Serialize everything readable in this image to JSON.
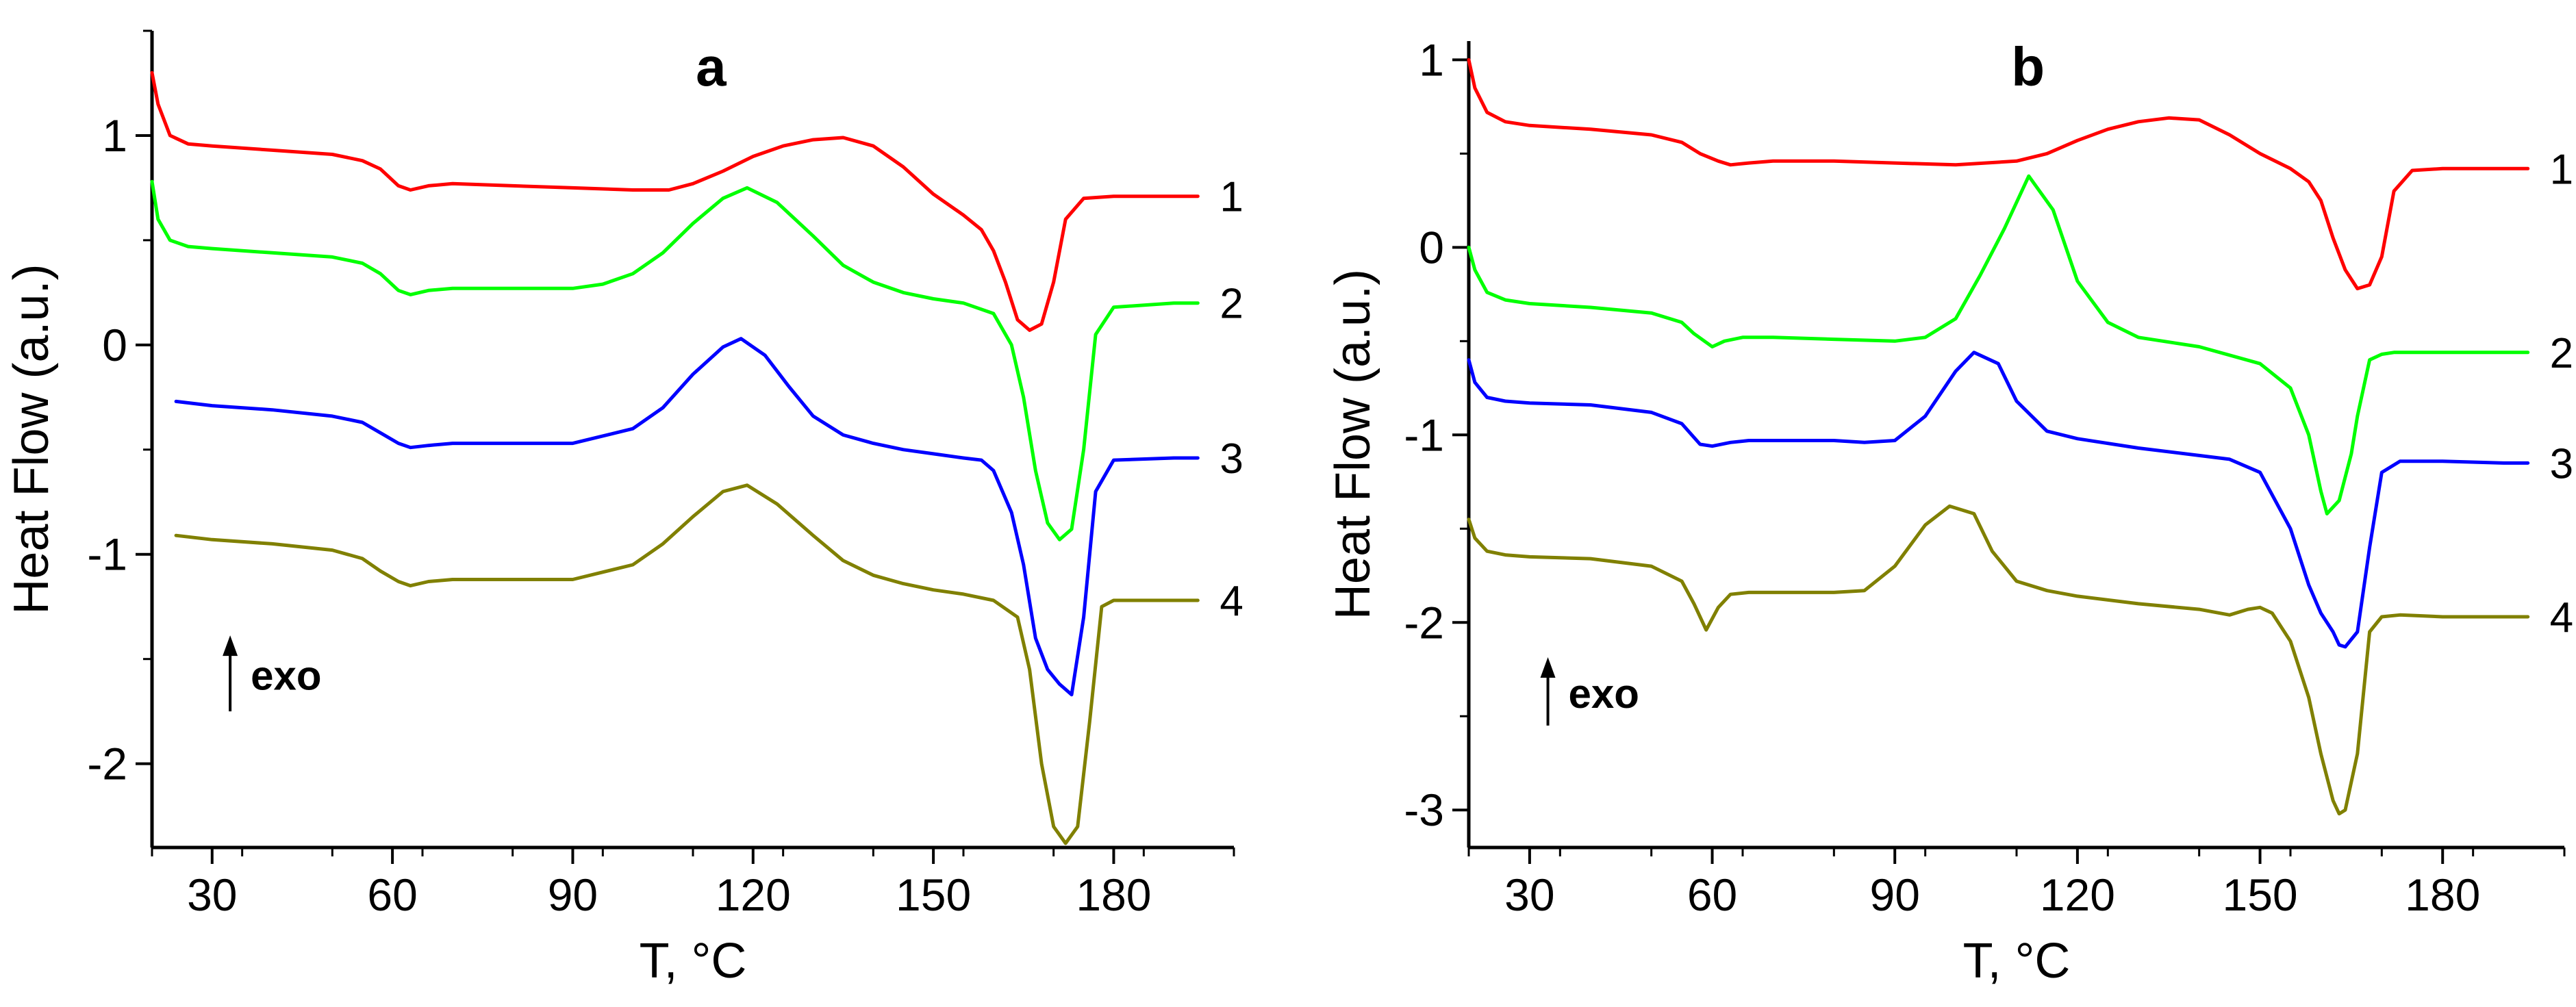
{
  "chart_data": [
    {
      "type": "line",
      "title": "a",
      "xlabel": "T, °C",
      "ylabel": "Heat Flow (a.u.)",
      "xlim": [
        20,
        200
      ],
      "ylim": [
        -2.4,
        1.5
      ],
      "xticks": [
        30,
        60,
        90,
        120,
        150,
        180
      ],
      "yticks": [
        -2,
        -1,
        0,
        1
      ],
      "grid": false,
      "annotation": "exo",
      "series": [
        {
          "name": "1",
          "color": "#ff0000",
          "x": [
            20,
            21,
            23,
            26,
            30,
            40,
            50,
            55,
            58,
            61,
            63,
            66,
            70,
            80,
            90,
            100,
            106,
            110,
            115,
            120,
            125,
            130,
            135,
            140,
            145,
            150,
            155,
            158,
            160,
            162,
            164,
            166,
            168,
            170,
            172,
            175,
            180,
            190,
            194
          ],
          "y": [
            1.3,
            1.15,
            1.0,
            0.96,
            0.95,
            0.93,
            0.91,
            0.88,
            0.84,
            0.76,
            0.74,
            0.76,
            0.77,
            0.76,
            0.75,
            0.74,
            0.74,
            0.77,
            0.83,
            0.9,
            0.95,
            0.98,
            0.99,
            0.95,
            0.85,
            0.72,
            0.62,
            0.55,
            0.45,
            0.3,
            0.12,
            0.07,
            0.1,
            0.3,
            0.6,
            0.7,
            0.71,
            0.71,
            0.71
          ]
        },
        {
          "name": "2",
          "color": "#00ff00",
          "x": [
            20,
            21,
            23,
            26,
            30,
            40,
            50,
            55,
            58,
            61,
            63,
            66,
            70,
            80,
            90,
            95,
            100,
            105,
            110,
            115,
            119,
            124,
            130,
            135,
            140,
            145,
            150,
            155,
            160,
            163,
            165,
            167,
            169,
            171,
            173,
            175,
            177,
            180,
            190,
            194
          ],
          "y": [
            0.78,
            0.6,
            0.5,
            0.47,
            0.46,
            0.44,
            0.42,
            0.39,
            0.34,
            0.26,
            0.24,
            0.26,
            0.27,
            0.27,
            0.27,
            0.29,
            0.34,
            0.44,
            0.58,
            0.7,
            0.75,
            0.68,
            0.52,
            0.38,
            0.3,
            0.25,
            0.22,
            0.2,
            0.15,
            0.0,
            -0.25,
            -0.6,
            -0.85,
            -0.93,
            -0.88,
            -0.5,
            0.05,
            0.18,
            0.2,
            0.2
          ]
        },
        {
          "name": "3",
          "color": "#0000ff",
          "x": [
            24,
            30,
            40,
            50,
            55,
            58,
            61,
            63,
            66,
            70,
            80,
            90,
            100,
            105,
            110,
            115,
            118,
            122,
            126,
            130,
            135,
            140,
            145,
            150,
            155,
            158,
            160,
            163,
            165,
            167,
            169,
            171,
            173,
            175,
            177,
            180,
            190,
            194
          ],
          "y": [
            -0.27,
            -0.29,
            -0.31,
            -0.34,
            -0.37,
            -0.42,
            -0.47,
            -0.49,
            -0.48,
            -0.47,
            -0.47,
            -0.47,
            -0.4,
            -0.3,
            -0.14,
            -0.01,
            0.03,
            -0.05,
            -0.2,
            -0.34,
            -0.43,
            -0.47,
            -0.5,
            -0.52,
            -0.54,
            -0.55,
            -0.6,
            -0.8,
            -1.05,
            -1.4,
            -1.55,
            -1.62,
            -1.67,
            -1.3,
            -0.7,
            -0.55,
            -0.54,
            -0.54
          ]
        },
        {
          "name": "4",
          "color": "#808000",
          "x": [
            24,
            30,
            40,
            50,
            55,
            58,
            61,
            63,
            66,
            70,
            80,
            90,
            100,
            105,
            110,
            115,
            119,
            124,
            130,
            135,
            140,
            145,
            150,
            155,
            160,
            164,
            166,
            168,
            170,
            172,
            174,
            176,
            178,
            180,
            190,
            194
          ],
          "y": [
            -0.91,
            -0.93,
            -0.95,
            -0.98,
            -1.02,
            -1.08,
            -1.13,
            -1.15,
            -1.13,
            -1.12,
            -1.12,
            -1.12,
            -1.05,
            -0.95,
            -0.82,
            -0.7,
            -0.67,
            -0.76,
            -0.91,
            -1.03,
            -1.1,
            -1.14,
            -1.17,
            -1.19,
            -1.22,
            -1.3,
            -1.55,
            -2.0,
            -2.3,
            -2.38,
            -2.3,
            -1.8,
            -1.25,
            -1.22,
            -1.22,
            -1.22
          ]
        }
      ]
    },
    {
      "type": "line",
      "title": "b",
      "xlabel": "T, °C",
      "ylabel": "Heat Flow (a.u.)",
      "xlim": [
        20,
        200
      ],
      "ylim": [
        -3.2,
        1.1
      ],
      "xticks": [
        30,
        60,
        90,
        120,
        150,
        180
      ],
      "yticks": [
        -3,
        -2,
        -1,
        0,
        1
      ],
      "grid": false,
      "annotation": "exo",
      "series": [
        {
          "name": "1",
          "color": "#ff0000",
          "x": [
            20,
            21,
            23,
            26,
            30,
            40,
            50,
            55,
            58,
            61,
            63,
            66,
            70,
            80,
            90,
            100,
            110,
            115,
            120,
            125,
            130,
            135,
            140,
            145,
            150,
            155,
            158,
            160,
            162,
            164,
            166,
            168,
            170,
            172,
            175,
            180,
            190,
            194
          ],
          "y": [
            1.0,
            0.85,
            0.72,
            0.67,
            0.65,
            0.63,
            0.6,
            0.56,
            0.5,
            0.46,
            0.44,
            0.45,
            0.46,
            0.46,
            0.45,
            0.44,
            0.46,
            0.5,
            0.57,
            0.63,
            0.67,
            0.69,
            0.68,
            0.6,
            0.5,
            0.42,
            0.35,
            0.25,
            0.05,
            -0.12,
            -0.22,
            -0.2,
            -0.05,
            0.3,
            0.41,
            0.42,
            0.42,
            0.42
          ]
        },
        {
          "name": "2",
          "color": "#00ff00",
          "x": [
            20,
            21,
            23,
            26,
            30,
            40,
            50,
            55,
            57,
            60,
            62,
            65,
            70,
            80,
            90,
            95,
            100,
            104,
            108,
            112,
            116,
            120,
            125,
            130,
            140,
            150,
            155,
            158,
            160,
            161,
            163,
            165,
            166,
            168,
            170,
            172,
            180,
            190,
            194
          ],
          "y": [
            0.0,
            -0.12,
            -0.24,
            -0.28,
            -0.3,
            -0.32,
            -0.35,
            -0.4,
            -0.46,
            -0.53,
            -0.5,
            -0.48,
            -0.48,
            -0.49,
            -0.5,
            -0.48,
            -0.38,
            -0.15,
            0.1,
            0.38,
            0.2,
            -0.18,
            -0.4,
            -0.48,
            -0.53,
            -0.62,
            -0.75,
            -1.0,
            -1.3,
            -1.42,
            -1.35,
            -1.1,
            -0.9,
            -0.6,
            -0.57,
            -0.56,
            -0.56,
            -0.56,
            -0.56
          ]
        },
        {
          "name": "3",
          "color": "#0000ff",
          "x": [
            20,
            21,
            23,
            26,
            30,
            40,
            50,
            55,
            58,
            60,
            63,
            66,
            70,
            80,
            85,
            90,
            95,
            100,
            103,
            107,
            110,
            115,
            120,
            130,
            140,
            145,
            150,
            155,
            158,
            160,
            162,
            163,
            164,
            166,
            168,
            170,
            173,
            180,
            190,
            194
          ],
          "y": [
            -0.6,
            -0.72,
            -0.8,
            -0.82,
            -0.83,
            -0.84,
            -0.88,
            -0.94,
            -1.05,
            -1.06,
            -1.04,
            -1.03,
            -1.03,
            -1.03,
            -1.04,
            -1.03,
            -0.9,
            -0.66,
            -0.56,
            -0.62,
            -0.82,
            -0.98,
            -1.02,
            -1.07,
            -1.11,
            -1.13,
            -1.2,
            -1.5,
            -1.8,
            -1.95,
            -2.05,
            -2.12,
            -2.13,
            -2.05,
            -1.6,
            -1.2,
            -1.14,
            -1.14,
            -1.15,
            -1.15
          ]
        },
        {
          "name": "4",
          "color": "#808000",
          "x": [
            20,
            21,
            23,
            26,
            30,
            40,
            50,
            55,
            57,
            59,
            61,
            63,
            66,
            70,
            80,
            85,
            90,
            95,
            99,
            103,
            106,
            110,
            115,
            120,
            130,
            140,
            145,
            148,
            150,
            152,
            155,
            158,
            160,
            162,
            163,
            164,
            166,
            168,
            170,
            173,
            180,
            190,
            194
          ],
          "y": [
            -1.45,
            -1.55,
            -1.62,
            -1.64,
            -1.65,
            -1.66,
            -1.7,
            -1.78,
            -1.9,
            -2.04,
            -1.92,
            -1.85,
            -1.84,
            -1.84,
            -1.84,
            -1.83,
            -1.7,
            -1.48,
            -1.38,
            -1.42,
            -1.62,
            -1.78,
            -1.83,
            -1.86,
            -1.9,
            -1.93,
            -1.96,
            -1.93,
            -1.92,
            -1.95,
            -2.1,
            -2.4,
            -2.7,
            -2.95,
            -3.02,
            -3.0,
            -2.7,
            -2.05,
            -1.97,
            -1.96,
            -1.97,
            -1.97,
            -1.97
          ]
        }
      ]
    }
  ]
}
